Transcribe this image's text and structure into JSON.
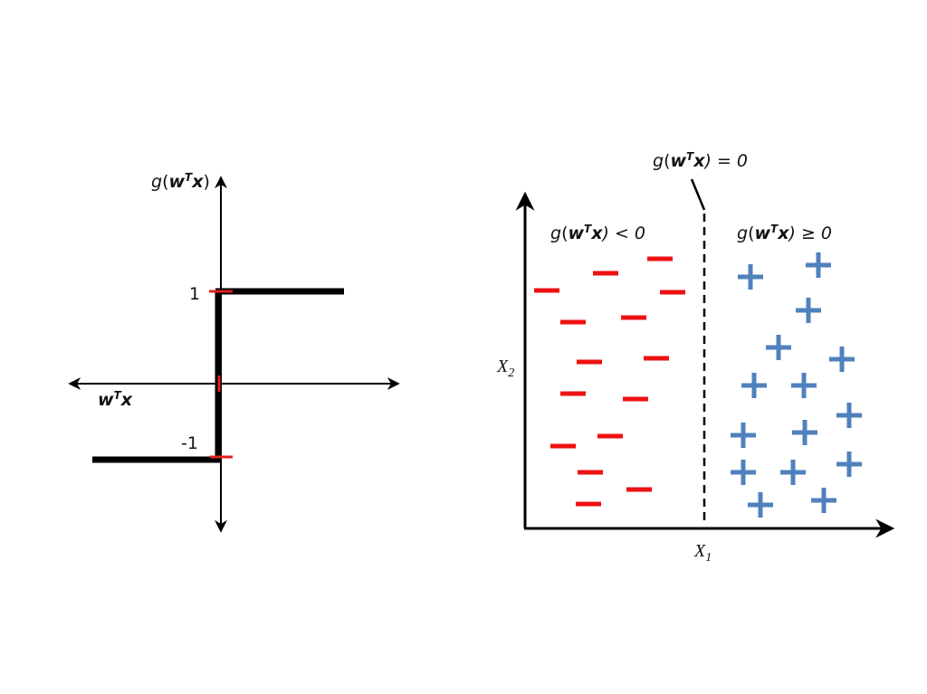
{
  "colors": {
    "negative": "#ee1111",
    "positive": "#4f81bd",
    "axis": "#000000",
    "tick": "#e02020"
  },
  "step_plot": {
    "ylabel": {
      "g": "g",
      "open": "(",
      "w": "w",
      "T": "T",
      "x": "x",
      "close": ")"
    },
    "xlabel": {
      "w": "w",
      "T": "T",
      "x": "x"
    },
    "tick_pos": "1",
    "tick_neg": "-1"
  },
  "classifier_plot": {
    "boundary_label": {
      "g": "g",
      "open": "(",
      "w": "w",
      "T": "T",
      "x": "x",
      "rest": ") = 0"
    },
    "left_region": {
      "g": "g",
      "open": "(",
      "w": "w",
      "T": "T",
      "x": "x",
      "rest": ") < 0"
    },
    "right_region": {
      "g": "g",
      "open": "(",
      "w": "w",
      "T": "T",
      "x": "x",
      "rest": ") ≥ 0"
    },
    "x1_label": {
      "base": "X",
      "sub": "1"
    },
    "x2_label": {
      "base": "X",
      "sub": "2"
    },
    "negative_marker": "minus",
    "positive_marker": "plus"
  }
}
